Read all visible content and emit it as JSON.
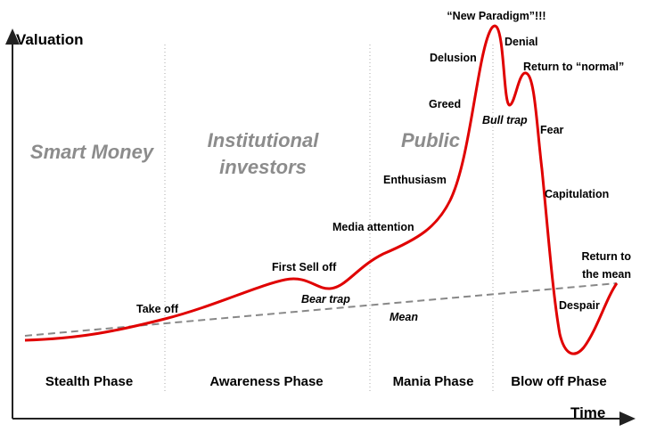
{
  "axes": {
    "y_label": "Valuation",
    "x_label": "Time"
  },
  "zones": [
    {
      "lines": [
        "Smart Money"
      ]
    },
    {
      "lines": [
        "Institutional",
        "investors"
      ]
    },
    {
      "lines": [
        "Public"
      ]
    }
  ],
  "phases": [
    "Stealth Phase",
    "Awareness Phase",
    "Mania Phase",
    "Blow off Phase"
  ],
  "annotations": [
    {
      "lines": [
        "“New Paradigm”!!!"
      ]
    },
    {
      "lines": [
        "Denial"
      ]
    },
    {
      "lines": [
        "Delusion"
      ]
    },
    {
      "lines": [
        "Return to “normal”"
      ]
    },
    {
      "lines": [
        "Greed"
      ]
    },
    {
      "lines": [
        "Bull trap"
      ]
    },
    {
      "lines": [
        "Fear"
      ]
    },
    {
      "lines": [
        "Enthusiasm"
      ]
    },
    {
      "lines": [
        "Capitulation"
      ]
    },
    {
      "lines": [
        "Media attention"
      ]
    },
    {
      "lines": [
        "Return to",
        "the mean"
      ]
    },
    {
      "lines": [
        "First Sell off"
      ]
    },
    {
      "lines": [
        "Bear trap"
      ]
    },
    {
      "lines": [
        "Take off"
      ]
    },
    {
      "lines": [
        "Mean"
      ]
    },
    {
      "lines": [
        "Despair"
      ]
    }
  ]
}
